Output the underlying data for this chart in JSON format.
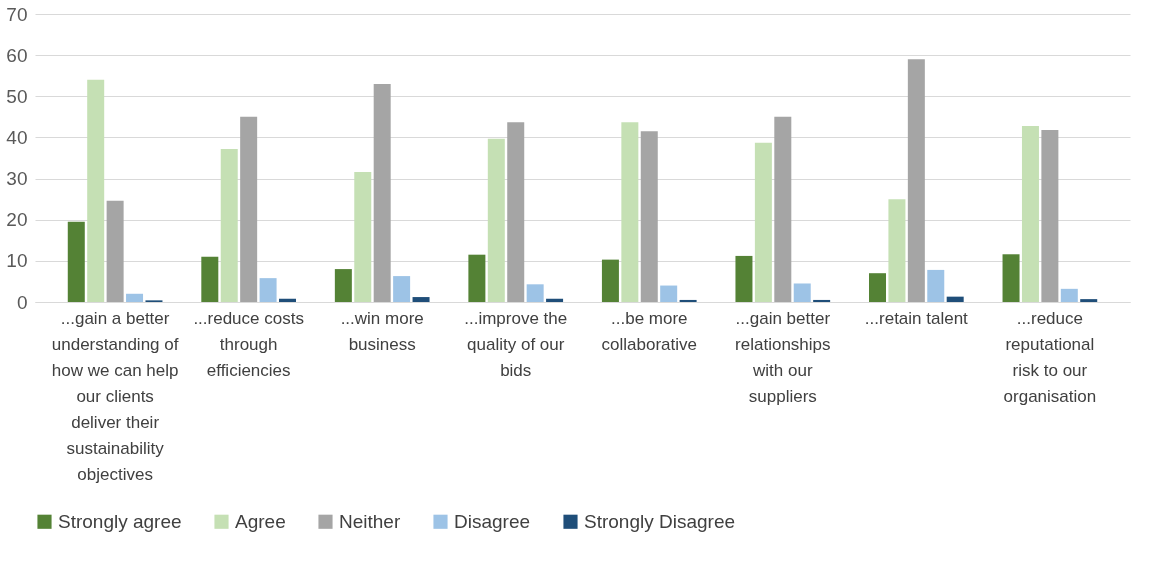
{
  "chart_data": {
    "type": "bar",
    "categories": [
      "...gain a better understanding of how we can help our clients deliver their sustainability objectives",
      "...reduce costs through efficiencies",
      "...win more business",
      "...improve the quality of our bids",
      "...be more collaborative",
      "...gain better relationships with our suppliers",
      "...retain talent",
      "...reduce reputational risk to our organisation"
    ],
    "series": [
      {
        "name": "Strongly agree",
        "color": "#548235",
        "values": [
          19.5,
          11,
          8,
          11.5,
          10.3,
          11.2,
          7,
          11.6
        ]
      },
      {
        "name": "Agree",
        "color": "#c5e0b4",
        "values": [
          54,
          37.2,
          31.6,
          39.7,
          43.7,
          38.7,
          25,
          42.8
        ]
      },
      {
        "name": "Neither",
        "color": "#a5a5a5",
        "values": [
          24.6,
          45,
          53,
          43.7,
          41.5,
          45,
          59,
          41.8
        ]
      },
      {
        "name": "Disagree",
        "color": "#9dc3e6",
        "values": [
          2,
          5.8,
          6.3,
          4.3,
          4,
          4.5,
          7.8,
          3.2
        ]
      },
      {
        "name": "Strongly Disagree",
        "color": "#1f4e79",
        "values": [
          0.4,
          0.8,
          1.2,
          0.8,
          0.5,
          0.5,
          1.3,
          0.7
        ]
      }
    ],
    "ylim": [
      0,
      70
    ],
    "yticks": [
      0,
      10,
      20,
      30,
      40,
      50,
      60,
      70
    ],
    "grid": "y",
    "legend": "bottom"
  }
}
